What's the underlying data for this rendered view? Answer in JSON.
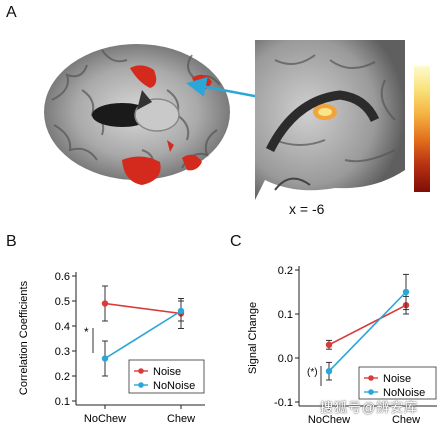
{
  "panels": {
    "a": "A",
    "b": "B",
    "c": "C"
  },
  "figure_a": {
    "coordinate_label": "x = -6"
  },
  "chart_data": [
    {
      "type": "line",
      "panel": "B",
      "ylabel": "Correlation Coefficients",
      "xlabel": "",
      "categories": [
        "NoChew",
        "Chew"
      ],
      "ylim": [
        0.1,
        0.6
      ],
      "yticks": [
        "0.1",
        "0.2",
        "0.3",
        "0.4",
        "0.5",
        "0.6"
      ],
      "series": [
        {
          "name": "Noise",
          "color": "#d93a3a",
          "values": [
            0.49,
            0.45
          ],
          "errors": [
            0.07,
            0.06
          ]
        },
        {
          "name": "NoNoise",
          "color": "#2aa6d8",
          "values": [
            0.27,
            0.46
          ],
          "errors": [
            0.07,
            0.04
          ]
        }
      ],
      "annotation": "*",
      "legend_position": "bottom-right",
      "grid": false
    },
    {
      "type": "line",
      "panel": "C",
      "ylabel": "Signal Change",
      "xlabel": "",
      "categories": [
        "NoChew",
        "Chew"
      ],
      "ylim": [
        -0.1,
        0.2
      ],
      "yticks": [
        "-0.1",
        "0.0",
        "0.1",
        "0.2"
      ],
      "series": [
        {
          "name": "Noise",
          "color": "#d93a3a",
          "values": [
            0.03,
            0.12
          ],
          "errors": [
            0.01,
            0.02
          ]
        },
        {
          "name": "NoNoise",
          "color": "#2aa6d8",
          "values": [
            -0.03,
            0.15
          ],
          "errors": [
            0.02,
            0.04
          ]
        }
      ],
      "annotation": "(*)",
      "legend_position": "bottom-right",
      "grid": false
    }
  ],
  "watermark": "搜狐号@辨安库"
}
